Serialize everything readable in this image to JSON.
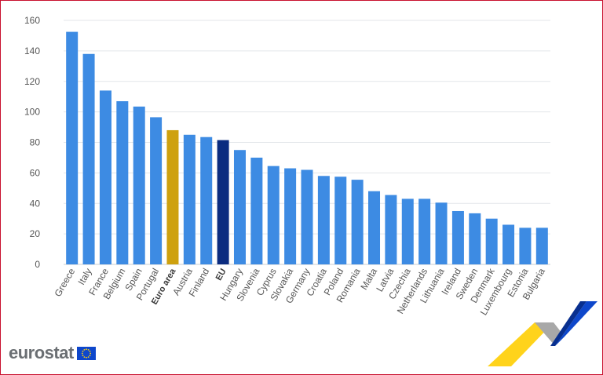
{
  "brand": {
    "logo_text": "eurostat"
  },
  "colors": {
    "bar_default": "#3d8be3",
    "bar_euro_area": "#cea10f",
    "bar_eu": "#0b2c80",
    "grid": "#e3e6ea",
    "axis_text": "#565656",
    "flag": "#0e47cb"
  },
  "chart_data": {
    "type": "bar",
    "title": "",
    "xlabel": "",
    "ylabel": "",
    "ylim": [
      0,
      160
    ],
    "yticks": [
      0,
      20,
      40,
      60,
      80,
      100,
      120,
      140,
      160
    ],
    "grid": true,
    "categories": [
      "Greece",
      "Italy",
      "France",
      "Belgium",
      "Spain",
      "Portugal",
      "Euro area",
      "Austria",
      "Finland",
      "EU",
      "Hungary",
      "Slovenia",
      "Cyprus",
      "Slovakia",
      "Germany",
      "Croatia",
      "Poland",
      "Romania",
      "Malta",
      "Latvia",
      "Czechia",
      "Netherlands",
      "Lithuania",
      "Ireland",
      "Sweden",
      "Denmark",
      "Luxembourg",
      "Estonia",
      "Bulgaria"
    ],
    "values": [
      152.5,
      138,
      114,
      107,
      103.5,
      96.5,
      88,
      85,
      83.5,
      81.5,
      75,
      70,
      64.5,
      63,
      62,
      58,
      57.5,
      55.5,
      48,
      45.5,
      43,
      43,
      40.5,
      35,
      33.5,
      30,
      26,
      24,
      24
    ],
    "highlight": {
      "Euro area": "euro_area",
      "EU": "eu"
    },
    "bold_labels": [
      "Euro area",
      "EU"
    ]
  }
}
